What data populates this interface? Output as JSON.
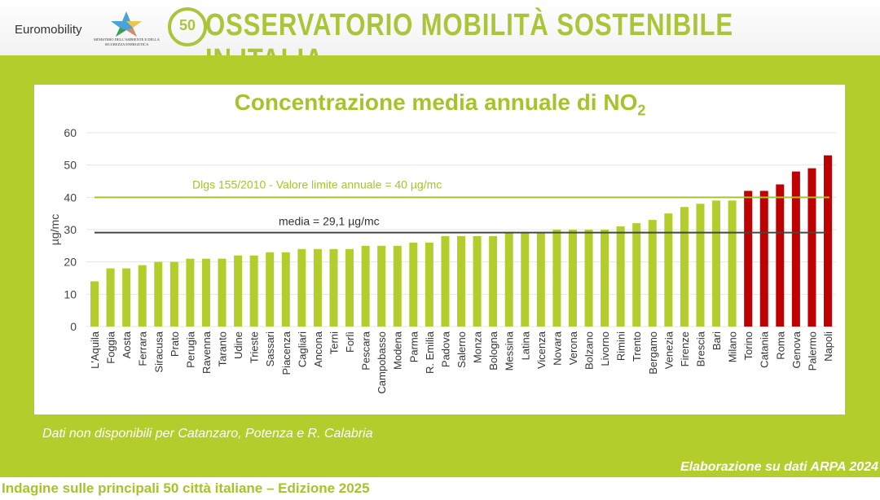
{
  "header": {
    "brand": "Euromobility",
    "ministry": "MINISTERO DELL'AMBIENTE E DELLA SICUREZZA ENERGETICA",
    "badge": "50",
    "title": "OSSERVATORIO MOBILITÀ SOSTENIBILE IN ITALIA"
  },
  "note": "Dati non disponibili per Catanzaro, Potenza e R. Calabria",
  "source": "Elaborazione su dati ARPA 2024",
  "footer": "Indagine sulle principali 50 città italiane – Edizione 2025",
  "colors": {
    "band": "#b2cd2c",
    "bar": "#b2cd2c",
    "bar_above_limit": "#c00000",
    "limit_line": "#a6c42a",
    "mean_line": "#404a40"
  },
  "chart_data": {
    "type": "bar",
    "title": "Concentrazione media annuale di NO",
    "title_sub": "2",
    "ylabel": "µg/mc",
    "ylim": [
      0,
      60
    ],
    "yticks": [
      0,
      10,
      20,
      30,
      40,
      50,
      60
    ],
    "grid": true,
    "categories": [
      "L'Aquila",
      "Foggia",
      "Aosta",
      "Ferrara",
      "Siracusa",
      "Prato",
      "Perugia",
      "Ravenna",
      "Taranto",
      "Udine",
      "Trieste",
      "Sassari",
      "Piacenza",
      "Cagliari",
      "Ancona",
      "Terni",
      "Forlì",
      "Pescara",
      "Campobasso",
      "Modena",
      "Parma",
      "R. Emilia",
      "Padova",
      "Salerno",
      "Monza",
      "Bologna",
      "Messina",
      "Latina",
      "Vicenza",
      "Novara",
      "Verona",
      "Bolzano",
      "Livorno",
      "Rimini",
      "Trento",
      "Bergamo",
      "Venezia",
      "Firenze",
      "Brescia",
      "Bari",
      "Milano",
      "Torino",
      "Catania",
      "Roma",
      "Genova",
      "Palermo",
      "Napoli"
    ],
    "values": [
      14,
      18,
      18,
      19,
      20,
      20,
      21,
      21,
      21,
      22,
      22,
      23,
      23,
      24,
      24,
      24,
      24,
      25,
      25,
      25,
      26,
      26,
      28,
      28,
      28,
      28,
      29,
      29,
      29,
      30,
      30,
      30,
      30,
      31,
      32,
      33,
      35,
      37,
      38,
      39,
      39,
      42,
      42,
      44,
      48,
      49,
      53
    ],
    "reference_lines": [
      {
        "value": 40,
        "label": "Dlgs 155/2010 - Valore limite annuale = 40 µg/mc"
      },
      {
        "value": 29.1,
        "label": "media = 29,1 µg/mc"
      }
    ]
  }
}
